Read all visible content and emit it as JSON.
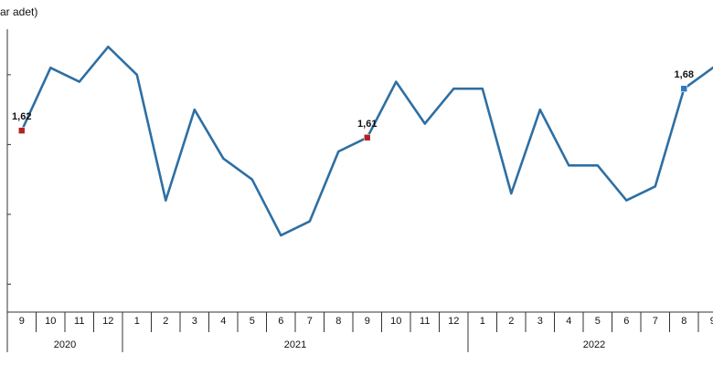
{
  "unit_label": "ar adet)",
  "colors": {
    "line": "#2e6fa3",
    "marker_red": "#b22222",
    "marker_blue": "#2e78c4",
    "axis": "#333333"
  },
  "chart_data": {
    "type": "line",
    "title": "",
    "xlabel": "",
    "ylabel": "",
    "ylim": [
      1.36,
      1.76
    ],
    "y_gridlines": [
      1.4,
      1.5,
      1.6,
      1.7
    ],
    "grid": false,
    "x": [
      "9",
      "10",
      "11",
      "12",
      "1",
      "2",
      "3",
      "4",
      "5",
      "6",
      "7",
      "8",
      "9",
      "10",
      "11",
      "12",
      "1",
      "2",
      "3",
      "4",
      "5",
      "6",
      "7",
      "8",
      "9"
    ],
    "year_groups": [
      {
        "label": "2020",
        "start": 0,
        "end": 3
      },
      {
        "label": "2021",
        "start": 4,
        "end": 15
      },
      {
        "label": "2022",
        "start": 16,
        "end": 24
      }
    ],
    "series": [
      {
        "values": [
          1.62,
          1.71,
          1.69,
          1.74,
          1.7,
          1.52,
          1.65,
          1.58,
          1.55,
          1.47,
          1.49,
          1.59,
          1.61,
          1.69,
          1.63,
          1.68,
          1.68,
          1.53,
          1.65,
          1.57,
          1.57,
          1.52,
          1.54,
          1.68,
          1.71
        ]
      }
    ],
    "annotations": [
      {
        "index": 0,
        "text": "1,62",
        "marker": "red"
      },
      {
        "index": 12,
        "text": "1,61",
        "marker": "red"
      },
      {
        "index": 23,
        "text": "1,68",
        "marker": "blue"
      }
    ]
  }
}
